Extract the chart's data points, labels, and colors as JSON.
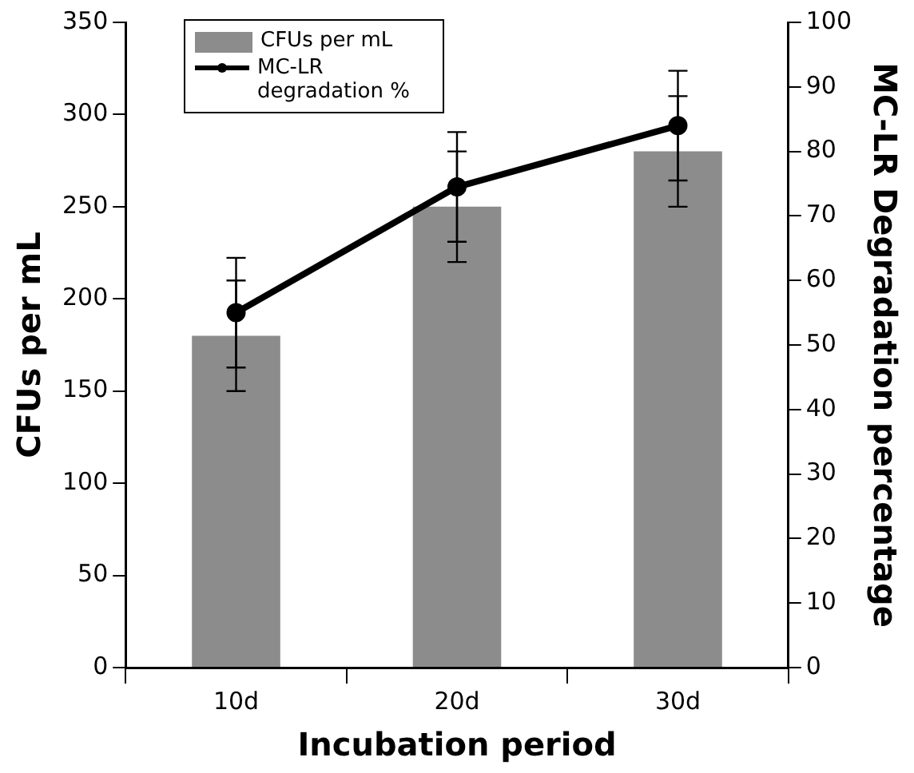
{
  "chart_data": {
    "type": "bar",
    "xlabel": "Incubation period",
    "ylabel": "CFUs per mL",
    "y2label": "MC-LR Degradation percentage",
    "categories": [
      "10d",
      "20d",
      "30d"
    ],
    "series": [
      {
        "name": "CFUs per mL",
        "color": "#8c8c8c",
        "values": [
          180,
          250,
          280
        ],
        "errors": [
          30,
          30,
          30
        ]
      },
      {
        "name": "MC-LR degradation %",
        "type": "line",
        "axis": "y2",
        "color": "#000000",
        "values": [
          55,
          74.5,
          84
        ],
        "errors": [
          8.5,
          8.5,
          8.5
        ],
        "marker": "circle"
      }
    ],
    "ylim": [
      0,
      350
    ],
    "yticks": [
      0,
      50,
      100,
      150,
      200,
      250,
      300,
      350
    ],
    "y2lim": [
      0,
      100
    ],
    "y2ticks": [
      0,
      10,
      20,
      30,
      40,
      50,
      60,
      70,
      80,
      90,
      100
    ],
    "grid": false,
    "legend": "top left"
  }
}
